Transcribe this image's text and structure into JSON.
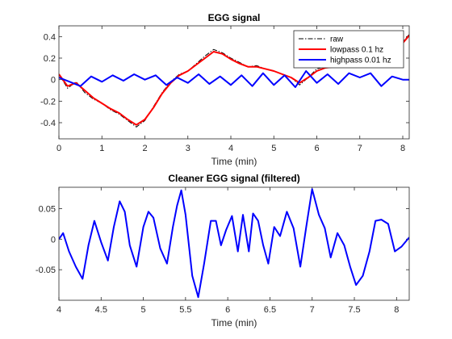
{
  "chart_data": [
    {
      "type": "line",
      "title": "EGG signal",
      "xlabel": "Time (min)",
      "ylabel": "",
      "xlim": [
        0,
        8.15
      ],
      "ylim": [
        -0.55,
        0.5
      ],
      "xticks": [
        0,
        1,
        2,
        3,
        4,
        5,
        6,
        7,
        8
      ],
      "yticks": [
        -0.4,
        -0.2,
        0,
        0.2,
        0.4
      ],
      "ytick_labels": [
        "-0.4",
        "-0.2",
        "0",
        "0.2",
        "0.4"
      ],
      "legend_position": "top-right",
      "series": [
        {
          "name": "raw",
          "color": "#000000",
          "style": "dash-dot",
          "x": [
            0,
            0.2,
            0.4,
            0.6,
            0.8,
            1.0,
            1.2,
            1.4,
            1.6,
            1.8,
            2.0,
            2.2,
            2.4,
            2.6,
            2.8,
            3.0,
            3.2,
            3.4,
            3.6,
            3.8,
            4.0,
            4.2,
            4.4,
            4.6,
            4.8,
            5.0,
            5.2,
            5.4,
            5.6,
            5.8,
            6.0,
            6.2,
            6.4,
            6.6,
            6.8,
            7.0,
            7.2,
            7.4,
            7.6,
            7.8,
            8.0,
            8.15
          ],
          "y": [
            0.05,
            -0.08,
            -0.02,
            -0.12,
            -0.18,
            -0.22,
            -0.28,
            -0.32,
            -0.38,
            -0.44,
            -0.38,
            -0.25,
            -0.12,
            -0.02,
            0.05,
            0.08,
            0.15,
            0.22,
            0.28,
            0.25,
            0.2,
            0.16,
            0.12,
            0.13,
            0.1,
            0.08,
            0.05,
            0.02,
            -0.05,
            0.02,
            0.1,
            0.12,
            0.13,
            0.12,
            0.14,
            0.18,
            0.15,
            0.2,
            0.18,
            0.25,
            0.35,
            0.42
          ]
        },
        {
          "name": "lowpass 0.1 hz",
          "color": "#ff0000",
          "style": "solid",
          "x": [
            0,
            0.2,
            0.4,
            0.6,
            0.8,
            1.0,
            1.2,
            1.4,
            1.6,
            1.8,
            2.0,
            2.2,
            2.4,
            2.6,
            2.8,
            3.0,
            3.2,
            3.4,
            3.6,
            3.8,
            4.0,
            4.2,
            4.4,
            4.6,
            4.8,
            5.0,
            5.2,
            5.4,
            5.6,
            5.8,
            6.0,
            6.2,
            6.4,
            6.6,
            6.8,
            7.0,
            7.2,
            7.4,
            7.6,
            7.8,
            8.0,
            8.15
          ],
          "y": [
            0.05,
            -0.06,
            -0.03,
            -0.1,
            -0.17,
            -0.22,
            -0.27,
            -0.31,
            -0.37,
            -0.42,
            -0.37,
            -0.26,
            -0.13,
            -0.03,
            0.04,
            0.08,
            0.14,
            0.2,
            0.26,
            0.24,
            0.19,
            0.15,
            0.12,
            0.12,
            0.1,
            0.08,
            0.05,
            0.02,
            -0.03,
            0.02,
            0.08,
            0.11,
            0.12,
            0.12,
            0.13,
            0.17,
            0.15,
            0.19,
            0.18,
            0.24,
            0.34,
            0.41
          ]
        },
        {
          "name": "highpass 0.01 hz",
          "color": "#0000ff",
          "style": "solid",
          "x": [
            0,
            0.25,
            0.5,
            0.75,
            1.0,
            1.25,
            1.5,
            1.75,
            2.0,
            2.25,
            2.5,
            2.75,
            3.0,
            3.25,
            3.5,
            3.75,
            4.0,
            4.25,
            4.5,
            4.75,
            5.0,
            5.25,
            5.5,
            5.75,
            6.0,
            6.25,
            6.5,
            6.75,
            7.0,
            7.25,
            7.5,
            7.75,
            8.0,
            8.15
          ],
          "y": [
            0.02,
            -0.02,
            -0.06,
            0.03,
            -0.02,
            0.04,
            -0.01,
            0.05,
            0.0,
            0.04,
            -0.05,
            0.02,
            -0.03,
            0.05,
            -0.04,
            0.03,
            -0.05,
            0.04,
            -0.06,
            0.06,
            -0.05,
            0.04,
            -0.07,
            0.08,
            -0.03,
            0.05,
            -0.04,
            0.06,
            0.02,
            0.06,
            -0.06,
            0.03,
            0.0,
            0.0
          ]
        }
      ]
    },
    {
      "type": "line",
      "title": "Cleaner EGG signal (filtered)",
      "xlabel": "Time (min)",
      "ylabel": "",
      "xlim": [
        4,
        8.15
      ],
      "ylim": [
        -0.1,
        0.085
      ],
      "xticks": [
        4,
        4.5,
        5,
        5.5,
        6,
        6.5,
        7,
        7.5,
        8
      ],
      "yticks": [
        -0.05,
        0,
        0.05
      ],
      "ytick_labels": [
        "-0.05",
        "0",
        "0.05"
      ],
      "series": [
        {
          "color": "#0000ff",
          "style": "solid",
          "x": [
            4.0,
            4.05,
            4.12,
            4.2,
            4.28,
            4.35,
            4.42,
            4.5,
            4.58,
            4.65,
            4.72,
            4.78,
            4.84,
            4.92,
            5.0,
            5.06,
            5.12,
            5.2,
            5.28,
            5.35,
            5.4,
            5.45,
            5.5,
            5.58,
            5.65,
            5.72,
            5.8,
            5.86,
            5.92,
            5.98,
            6.05,
            6.12,
            6.18,
            6.25,
            6.3,
            6.36,
            6.42,
            6.48,
            6.55,
            6.62,
            6.7,
            6.78,
            6.86,
            6.93,
            7.0,
            7.08,
            7.15,
            7.22,
            7.3,
            7.38,
            7.45,
            7.52,
            7.6,
            7.68,
            7.75,
            7.82,
            7.9,
            7.98,
            8.06,
            8.15
          ],
          "y": [
            0.0,
            0.01,
            -0.02,
            -0.045,
            -0.065,
            -0.01,
            0.03,
            -0.005,
            -0.035,
            0.02,
            0.062,
            0.045,
            -0.01,
            -0.045,
            0.02,
            0.045,
            0.035,
            -0.015,
            -0.04,
            0.02,
            0.055,
            0.08,
            0.04,
            -0.06,
            -0.095,
            -0.04,
            0.03,
            0.03,
            -0.01,
            0.015,
            0.038,
            -0.02,
            0.04,
            -0.02,
            0.042,
            0.03,
            -0.01,
            -0.04,
            0.02,
            0.005,
            0.045,
            0.018,
            -0.045,
            0.02,
            0.082,
            0.04,
            0.018,
            -0.03,
            0.01,
            -0.01,
            -0.045,
            -0.075,
            -0.06,
            -0.02,
            0.03,
            0.032,
            0.025,
            -0.02,
            -0.012,
            0.003
          ]
        }
      ]
    }
  ]
}
